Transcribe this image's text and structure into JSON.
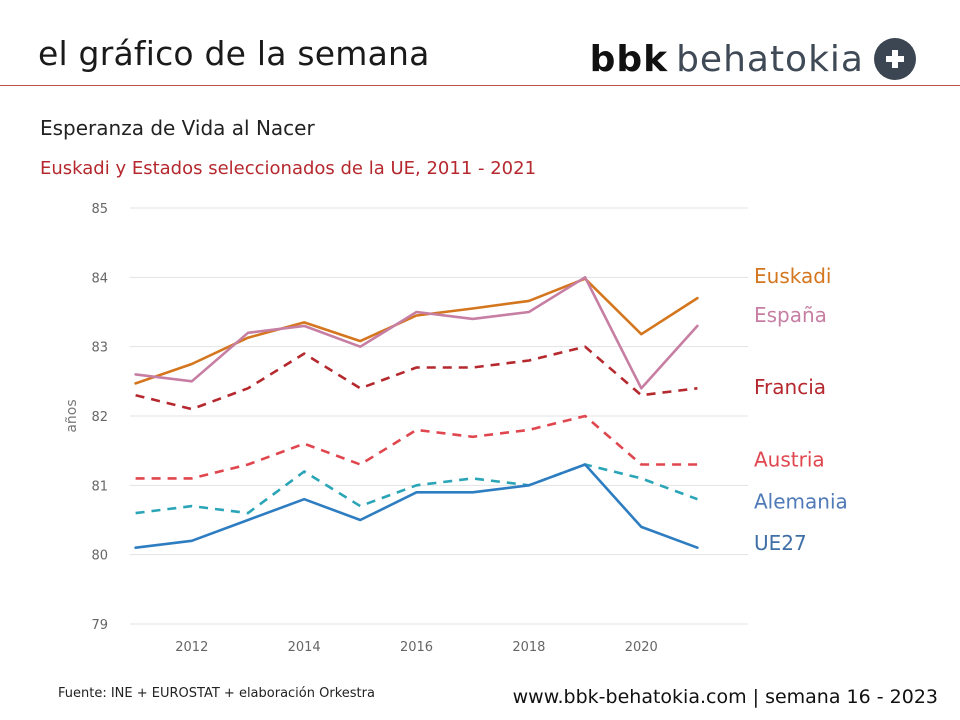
{
  "header": {
    "title": "el gráfico de la semana",
    "brand_prefix": "bbk",
    "brand_name": "behatokia"
  },
  "chart_data": {
    "type": "line",
    "title": "Esperanza de Vida al Nacer",
    "subtitle": "Euskadi y Estados seleccionados de la UE, 2011 - 2021",
    "xlabel": "",
    "ylabel": "años",
    "x": [
      2011,
      2012,
      2013,
      2014,
      2015,
      2016,
      2017,
      2018,
      2019,
      2020,
      2021
    ],
    "xticks": [
      2012,
      2014,
      2016,
      2018,
      2020
    ],
    "yticks": [
      79,
      80,
      81,
      82,
      83,
      84,
      85
    ],
    "xlim": [
      2010.9,
      2021.9
    ],
    "ylim": [
      79,
      85
    ],
    "grid": true,
    "series": [
      {
        "name": "Euskadi",
        "color": "#d4761e",
        "dashed": false,
        "values": [
          82.47,
          82.75,
          83.13,
          83.35,
          83.08,
          83.45,
          83.55,
          83.66,
          83.98,
          83.18,
          83.7
        ]
      },
      {
        "name": "España",
        "color": "#c77ea3",
        "dashed": false,
        "values": [
          82.6,
          82.5,
          83.2,
          83.3,
          83.0,
          83.5,
          83.4,
          83.5,
          84.0,
          82.4,
          83.3
        ]
      },
      {
        "name": "Francia",
        "color": "#b5282e",
        "dashed": true,
        "values": [
          82.3,
          82.1,
          82.4,
          82.9,
          82.4,
          82.7,
          82.7,
          82.8,
          83.0,
          82.3,
          82.4
        ]
      },
      {
        "name": "Austria",
        "color": "#e0464e",
        "dashed": true,
        "values": [
          81.1,
          81.1,
          81.3,
          81.6,
          81.3,
          81.8,
          81.7,
          81.8,
          82.0,
          81.3,
          81.3
        ]
      },
      {
        "name": "Alemania",
        "color": "#2aa5b7",
        "dashed": true,
        "labelColor": "#4f7ab8",
        "values": [
          80.6,
          80.7,
          80.6,
          81.2,
          80.7,
          81.0,
          81.1,
          81.0,
          81.3,
          81.1,
          80.8
        ]
      },
      {
        "name": "UE27",
        "color": "#2e7dc1",
        "dashed": false,
        "labelColor": "#3f6fa6",
        "values": [
          80.1,
          80.2,
          80.5,
          80.8,
          80.5,
          80.9,
          80.9,
          81.0,
          81.3,
          80.4,
          80.1
        ]
      }
    ]
  },
  "footer": {
    "source": "Fuente: INE + EUROSTAT + elaboración Orkestra",
    "web": "www.bbk-behatokia.com | semana 16 - 2023"
  }
}
